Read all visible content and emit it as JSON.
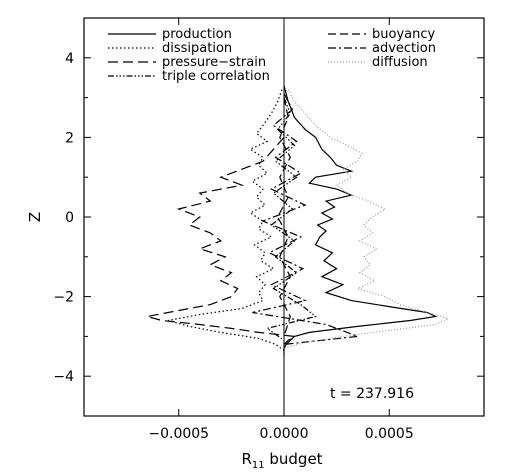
{
  "chart_data": {
    "type": "line",
    "title": "",
    "xlabel_main": "R",
    "xlabel_sub": "11",
    "xlabel_rest": " budget",
    "ylabel": "Z",
    "xlim": [
      -0.00095,
      0.00095
    ],
    "ylim": [
      -5,
      5
    ],
    "grid": false,
    "legend_position": "top",
    "annotation": "t = 237.916",
    "x_ticks": [
      {
        "value": -0.0005,
        "label": "−0.0005"
      },
      {
        "value": 0.0,
        "label": "0.0000"
      },
      {
        "value": 0.0005,
        "label": "0.0005"
      }
    ],
    "y_ticks": [
      {
        "value": -4,
        "label": "−4"
      },
      {
        "value": -2,
        "label": "−2"
      },
      {
        "value": 0,
        "label": "0"
      },
      {
        "value": 2,
        "label": "2"
      },
      {
        "value": 4,
        "label": "4"
      }
    ],
    "series": [
      {
        "name": "production",
        "dash": "none",
        "color": "#000000",
        "legend_col": 0,
        "legend_row": 0,
        "z": [
          3.3,
          2.9,
          2.5,
          2.2,
          2.0,
          1.7,
          1.5,
          1.3,
          1.15,
          1.0,
          0.85,
          0.7,
          0.55,
          0.4,
          0.25,
          0.1,
          -0.05,
          -0.2,
          -0.35,
          -0.5,
          -0.7,
          -0.9,
          -1.1,
          -1.3,
          -1.5,
          -1.7,
          -1.9,
          -2.1,
          -2.25,
          -2.4,
          -2.5,
          -2.6,
          -2.75,
          -2.9,
          -3.0,
          -3.1,
          -3.2,
          -3.3,
          -3.5
        ],
        "x": [
          0.0,
          2e-05,
          5e-05,
          0.0001,
          0.00015,
          0.00018,
          0.00022,
          0.00025,
          0.00032,
          0.00015,
          0.00012,
          0.00025,
          0.00032,
          0.0002,
          0.00024,
          0.00018,
          0.00023,
          0.00016,
          0.0002,
          0.00017,
          0.00015,
          0.00023,
          0.00019,
          0.00025,
          0.00018,
          0.00028,
          0.0002,
          0.00032,
          0.0005,
          0.00068,
          0.00072,
          0.0006,
          0.00035,
          0.00012,
          5e-05,
          3e-05,
          1e-05,
          0.0,
          0.0
        ]
      },
      {
        "name": "dissipation",
        "dash": "1.5,2.5",
        "color": "#000000",
        "legend_col": 0,
        "legend_row": 1,
        "z": [
          3.2,
          2.9,
          2.6,
          2.3,
          2.1,
          1.9,
          1.7,
          1.5,
          1.3,
          1.1,
          0.9,
          0.7,
          0.5,
          0.3,
          0.1,
          -0.1,
          -0.3,
          -0.5,
          -0.7,
          -0.9,
          -1.1,
          -1.3,
          -1.5,
          -1.7,
          -1.9,
          -2.1,
          -2.3,
          -2.45,
          -2.6,
          -2.75,
          -2.9,
          -3.05,
          -3.2,
          -3.35
        ],
        "x": [
          -1e-05,
          -3e-05,
          -6e-05,
          -0.0001,
          -0.00013,
          -8e-05,
          -0.00016,
          -0.0001,
          -0.00012,
          -8e-05,
          -0.00015,
          -0.0001,
          -0.00013,
          -9e-05,
          -0.00016,
          -0.0001,
          -0.00012,
          -6e-05,
          -0.00014,
          -9e-05,
          -0.00011,
          -5e-05,
          -0.00013,
          -9e-05,
          -0.00012,
          -0.0001,
          -0.0002,
          -0.0004,
          -0.00055,
          -0.00045,
          -0.0003,
          -0.00012,
          -4e-05,
          0.0
        ]
      },
      {
        "name": "pressure−strain",
        "dash": "10,5",
        "color": "#000000",
        "legend_col": 0,
        "legend_row": 2,
        "z": [
          2.0,
          1.7,
          1.4,
          1.2,
          1.0,
          0.8,
          0.6,
          0.4,
          0.2,
          0.0,
          -0.2,
          -0.4,
          -0.6,
          -0.8,
          -1.0,
          -1.2,
          -1.4,
          -1.6,
          -1.8,
          -2.0,
          -2.2,
          -2.35,
          -2.5,
          -2.6,
          -2.7,
          -2.8,
          -2.9,
          -3.0,
          -3.1,
          -3.2
        ],
        "x": [
          0.0,
          -5e-05,
          -0.0001,
          -0.0002,
          -0.0003,
          -0.0002,
          -0.0004,
          -0.00035,
          -0.0005,
          -0.0004,
          -0.00045,
          -0.00035,
          -0.0003,
          -0.0004,
          -0.00028,
          -0.00035,
          -0.00025,
          -0.0003,
          -0.00022,
          -0.00025,
          -0.00035,
          -0.0005,
          -0.00065,
          -0.00058,
          -0.0004,
          -0.00025,
          -0.00012,
          5e-05,
          2e-05,
          0.0
        ]
      },
      {
        "name": "triple correlation",
        "dash": "6,2,1.5,2,1.5,2,1.5,2",
        "color": "#000000",
        "legend_col": 0,
        "legend_row": 3,
        "z": [
          3.0,
          2.6,
          2.2,
          1.8,
          1.4,
          1.0,
          0.6,
          0.2,
          -0.2,
          -0.6,
          -1.0,
          -1.4,
          -1.8,
          -2.2,
          -2.5,
          -2.8,
          -3.1
        ],
        "x": [
          0.0,
          3e-05,
          -3e-05,
          5e-05,
          -4e-05,
          6e-05,
          -5e-05,
          4e-05,
          -6e-05,
          5e-05,
          -4e-05,
          6e-05,
          -5e-05,
          8e-05,
          0.00015,
          -8e-05,
          0.0
        ]
      },
      {
        "name": "buoyancy",
        "dash": "8,4",
        "color": "#000000",
        "legend_col": 1,
        "legend_row": 0,
        "z": [
          3.0,
          2.5,
          2.0,
          1.5,
          1.0,
          0.5,
          0.0,
          -0.5,
          -1.0,
          -1.5,
          -2.0,
          -2.5,
          -3.0
        ],
        "x": [
          0.0,
          2e-05,
          -2e-05,
          3e-05,
          -2e-05,
          2e-05,
          -3e-05,
          2e-05,
          -2e-05,
          3e-05,
          -2e-05,
          3e-05,
          0.0
        ]
      },
      {
        "name": "advection",
        "dash": "8,3,2,3",
        "color": "#000000",
        "legend_col": 1,
        "legend_row": 1,
        "z": [
          3.1,
          2.7,
          2.3,
          1.9,
          1.5,
          1.1,
          0.7,
          0.3,
          -0.1,
          -0.5,
          -0.9,
          -1.3,
          -1.7,
          -2.1,
          -2.4,
          -2.7,
          -3.0,
          -3.2
        ],
        "x": [
          0.0,
          4e-05,
          -5e-05,
          6e-05,
          -4e-05,
          8e-05,
          -6e-05,
          0.0001,
          -0.0001,
          8e-05,
          -7e-05,
          9e-05,
          -6e-05,
          0.0001,
          -0.00015,
          0.0002,
          0.00035,
          0.0
        ]
      },
      {
        "name": "diffusion",
        "dash": "1,2",
        "color": "#9a9a9a",
        "legend_col": 1,
        "legend_row": 2,
        "z": [
          3.2,
          2.9,
          2.6,
          2.3,
          2.0,
          1.8,
          1.6,
          1.4,
          1.2,
          1.0,
          0.8,
          0.6,
          0.4,
          0.2,
          0.0,
          -0.2,
          -0.4,
          -0.6,
          -0.8,
          -1.0,
          -1.2,
          -1.4,
          -1.6,
          -1.8,
          -2.0,
          -2.2,
          -2.4,
          -2.55,
          -2.7,
          -2.85,
          -3.0,
          -3.15,
          -3.3
        ],
        "x": [
          2e-05,
          5e-05,
          0.0001,
          0.00015,
          0.00022,
          0.0003,
          0.00037,
          0.00035,
          0.00028,
          0.00032,
          0.00025,
          0.0003,
          0.0004,
          0.00048,
          0.00042,
          0.00038,
          0.00042,
          0.00036,
          0.00044,
          0.00038,
          0.00041,
          0.00036,
          0.00043,
          0.00035,
          0.00048,
          0.00055,
          0.00068,
          0.00078,
          0.00072,
          0.0005,
          0.00028,
          0.0001,
          0.0
        ]
      }
    ]
  }
}
